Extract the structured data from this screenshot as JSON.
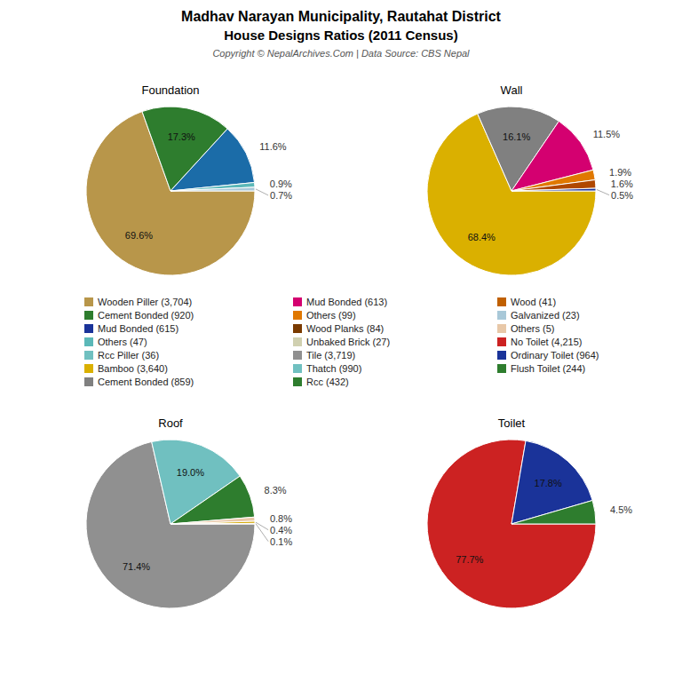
{
  "title": "Madhav Narayan Municipality, Rautahat District",
  "subtitle": "House Designs Ratios (2011 Census)",
  "annotations": [
    "Copyright © NepalArchives.Com | Data Source: CBS Nepal"
  ],
  "legend_entries": [
    {
      "name": "Wooden Piller (3,704)",
      "color": "#b8964a"
    },
    {
      "name": "Cement Bonded (920)",
      "color": "#2e7d2e"
    },
    {
      "name": "Mud Bonded (615)",
      "color": "#1a3399"
    },
    {
      "name": "Others (47)",
      "color": "#5bb8b8"
    },
    {
      "name": "Rcc Piller (36)",
      "color": "#70c0c0"
    },
    {
      "name": "Bamboo (3,640)",
      "color": "#dab000"
    },
    {
      "name": "Cement Bonded (859)",
      "color": "#808080"
    },
    {
      "name": "Mud Bonded (613)",
      "color": "#d40070"
    },
    {
      "name": "Others (99)",
      "color": "#e07800"
    },
    {
      "name": "Wood Planks (84)",
      "color": "#7a3a00"
    },
    {
      "name": "Unbaked Brick (27)",
      "color": "#d0d0b0"
    },
    {
      "name": "Tile (3,719)",
      "color": "#909090"
    },
    {
      "name": "Thatch (990)",
      "color": "#70c0c0"
    },
    {
      "name": "Rcc (432)",
      "color": "#2e7d2e"
    },
    {
      "name": "Wood (41)",
      "color": "#c06000"
    },
    {
      "name": "Galvanized (23)",
      "color": "#a8c8d8"
    },
    {
      "name": "Others (5)",
      "color": "#e8c8a8"
    },
    {
      "name": "No Toilet (4,215)",
      "color": "#cc2222"
    },
    {
      "name": "Ordinary Toilet (964)",
      "color": "#1a3399"
    },
    {
      "name": "Flush Toilet (244)",
      "color": "#2e7d2e"
    }
  ],
  "chart_data": [
    {
      "type": "pie",
      "title": "Foundation",
      "values": [
        69.6,
        17.3,
        11.6,
        0.9,
        0.7
      ],
      "value_labels": [
        "69.6%",
        "17.3%",
        "11.6%",
        "0.9%",
        "0.7%"
      ],
      "colors": [
        "#b8964a",
        "#2e7d2e",
        "#1b6ca8",
        "#5bb8b8",
        "#a8c8d8"
      ],
      "data_labels": true
    },
    {
      "type": "pie",
      "title": "Wall",
      "values": [
        68.4,
        16.1,
        11.5,
        1.9,
        1.6,
        0.5
      ],
      "value_labels": [
        "68.4%",
        "16.1%",
        "11.5%",
        "1.9%",
        "1.6%",
        "0.5%"
      ],
      "colors": [
        "#dab000",
        "#808080",
        "#d40070",
        "#e07800",
        "#b04800",
        "#1a3399"
      ],
      "data_labels": true
    },
    {
      "type": "pie",
      "title": "Roof",
      "values": [
        71.4,
        19.0,
        8.3,
        0.8,
        0.4,
        0.1
      ],
      "value_labels": [
        "71.4%",
        "19.0%",
        "8.3%",
        "0.8%",
        "0.4%",
        "0.1%"
      ],
      "colors": [
        "#909090",
        "#70c0c0",
        "#2e7d2e",
        "#e8c8a8",
        "#d4a800",
        "#c06000"
      ],
      "data_labels": true
    },
    {
      "type": "pie",
      "title": "Toilet",
      "values": [
        77.7,
        17.8,
        4.5
      ],
      "value_labels": [
        "77.7%",
        "17.8%",
        "4.5%"
      ],
      "colors": [
        "#cc2222",
        "#1a3399",
        "#2e7d2e"
      ],
      "data_labels": true
    }
  ]
}
